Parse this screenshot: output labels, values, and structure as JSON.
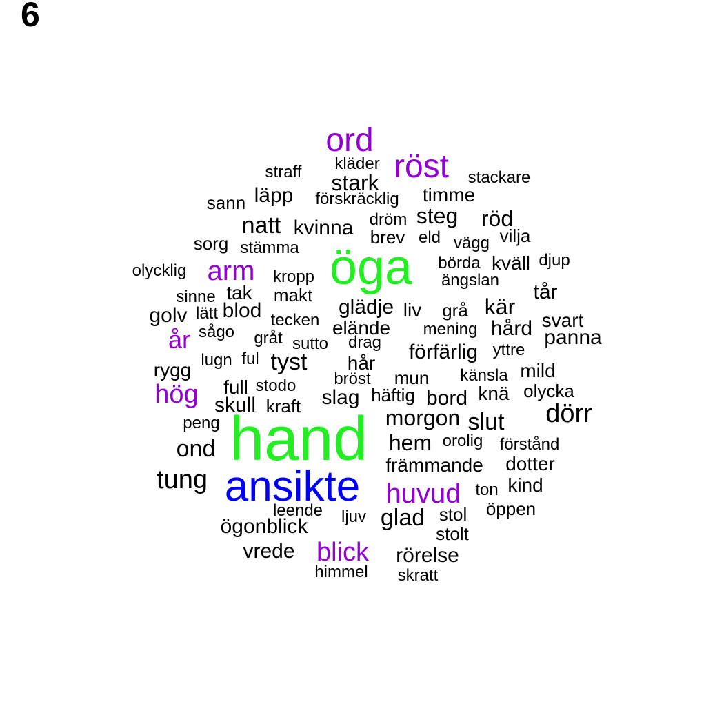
{
  "panel_label": "6",
  "colors": {
    "black": "#000000",
    "purple": "#9400D3",
    "green": "#22EE22",
    "blue": "#0000FF"
  },
  "words": [
    {
      "text": "hand",
      "color": "green"
    },
    {
      "text": "öga",
      "color": "green"
    },
    {
      "text": "ansikte",
      "color": "blue"
    },
    {
      "text": "ord",
      "color": "purple"
    },
    {
      "text": "röst",
      "color": "purple"
    },
    {
      "text": "arm",
      "color": "purple"
    },
    {
      "text": "år",
      "color": "purple"
    },
    {
      "text": "hög",
      "color": "purple"
    },
    {
      "text": "huvud",
      "color": "purple"
    },
    {
      "text": "blick",
      "color": "purple"
    },
    {
      "text": "kläder",
      "color": "black"
    },
    {
      "text": "straff",
      "color": "black"
    },
    {
      "text": "stark",
      "color": "black"
    },
    {
      "text": "stackare",
      "color": "black"
    },
    {
      "text": "läpp",
      "color": "black"
    },
    {
      "text": "sann",
      "color": "black"
    },
    {
      "text": "förskräcklig",
      "color": "black"
    },
    {
      "text": "timme",
      "color": "black"
    },
    {
      "text": "natt",
      "color": "black"
    },
    {
      "text": "kvinna",
      "color": "black"
    },
    {
      "text": "dröm",
      "color": "black"
    },
    {
      "text": "steg",
      "color": "black"
    },
    {
      "text": "röd",
      "color": "black"
    },
    {
      "text": "sorg",
      "color": "black"
    },
    {
      "text": "brev",
      "color": "black"
    },
    {
      "text": "eld",
      "color": "black"
    },
    {
      "text": "vägg",
      "color": "black"
    },
    {
      "text": "vilja",
      "color": "black"
    },
    {
      "text": "stämma",
      "color": "black"
    },
    {
      "text": "olycklig",
      "color": "black"
    },
    {
      "text": "börda",
      "color": "black"
    },
    {
      "text": "kväll",
      "color": "black"
    },
    {
      "text": "djup",
      "color": "black"
    },
    {
      "text": "kropp",
      "color": "black"
    },
    {
      "text": "ängslan",
      "color": "black"
    },
    {
      "text": "sinne",
      "color": "black"
    },
    {
      "text": "tak",
      "color": "black"
    },
    {
      "text": "makt",
      "color": "black"
    },
    {
      "text": "tår",
      "color": "black"
    },
    {
      "text": "glädje",
      "color": "black"
    },
    {
      "text": "liv",
      "color": "black"
    },
    {
      "text": "grå",
      "color": "black"
    },
    {
      "text": "kär",
      "color": "black"
    },
    {
      "text": "golv",
      "color": "black"
    },
    {
      "text": "lätt",
      "color": "black"
    },
    {
      "text": "blod",
      "color": "black"
    },
    {
      "text": "tecken",
      "color": "black"
    },
    {
      "text": "elände",
      "color": "black"
    },
    {
      "text": "mening",
      "color": "black"
    },
    {
      "text": "hård",
      "color": "black"
    },
    {
      "text": "svart",
      "color": "black"
    },
    {
      "text": "sågo",
      "color": "black"
    },
    {
      "text": "gråt",
      "color": "black"
    },
    {
      "text": "sutto",
      "color": "black"
    },
    {
      "text": "drag",
      "color": "black"
    },
    {
      "text": "panna",
      "color": "black"
    },
    {
      "text": "förfärlig",
      "color": "black"
    },
    {
      "text": "yttre",
      "color": "black"
    },
    {
      "text": "lugn",
      "color": "black"
    },
    {
      "text": "ful",
      "color": "black"
    },
    {
      "text": "tyst",
      "color": "black"
    },
    {
      "text": "hår",
      "color": "black"
    },
    {
      "text": "rygg",
      "color": "black"
    },
    {
      "text": "mild",
      "color": "black"
    },
    {
      "text": "bröst",
      "color": "black"
    },
    {
      "text": "mun",
      "color": "black"
    },
    {
      "text": "känsla",
      "color": "black"
    },
    {
      "text": "full",
      "color": "black"
    },
    {
      "text": "stodo",
      "color": "black"
    },
    {
      "text": "slag",
      "color": "black"
    },
    {
      "text": "häftig",
      "color": "black"
    },
    {
      "text": "bord",
      "color": "black"
    },
    {
      "text": "knä",
      "color": "black"
    },
    {
      "text": "olycka",
      "color": "black"
    },
    {
      "text": "skull",
      "color": "black"
    },
    {
      "text": "kraft",
      "color": "black"
    },
    {
      "text": "morgon",
      "color": "black"
    },
    {
      "text": "slut",
      "color": "black"
    },
    {
      "text": "dörr",
      "color": "black"
    },
    {
      "text": "peng",
      "color": "black"
    },
    {
      "text": "ond",
      "color": "black"
    },
    {
      "text": "hem",
      "color": "black"
    },
    {
      "text": "orolig",
      "color": "black"
    },
    {
      "text": "förstånd",
      "color": "black"
    },
    {
      "text": "främmande",
      "color": "black"
    },
    {
      "text": "dotter",
      "color": "black"
    },
    {
      "text": "tung",
      "color": "black"
    },
    {
      "text": "ton",
      "color": "black"
    },
    {
      "text": "kind",
      "color": "black"
    },
    {
      "text": "leende",
      "color": "black"
    },
    {
      "text": "ljuv",
      "color": "black"
    },
    {
      "text": "glad",
      "color": "black"
    },
    {
      "text": "stol",
      "color": "black"
    },
    {
      "text": "öppen",
      "color": "black"
    },
    {
      "text": "ögonblick",
      "color": "black"
    },
    {
      "text": "stolt",
      "color": "black"
    },
    {
      "text": "vrede",
      "color": "black"
    },
    {
      "text": "rörelse",
      "color": "black"
    },
    {
      "text": "himmel",
      "color": "black"
    },
    {
      "text": "skratt",
      "color": "black"
    }
  ]
}
